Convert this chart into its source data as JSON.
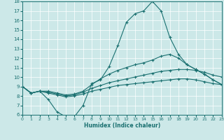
{
  "xlabel": "Humidex (Indice chaleur)",
  "bg_color": "#cce8e8",
  "line_color": "#1a7070",
  "grid_color": "#b0d8d8",
  "xlim": [
    0,
    23
  ],
  "ylim": [
    6,
    18
  ],
  "yticks": [
    6,
    7,
    8,
    9,
    10,
    11,
    12,
    13,
    14,
    15,
    16,
    17,
    18
  ],
  "xticks": [
    0,
    1,
    2,
    3,
    4,
    5,
    6,
    7,
    8,
    9,
    10,
    11,
    12,
    13,
    14,
    15,
    16,
    17,
    18,
    19,
    20,
    21,
    22,
    23
  ],
  "line1_x": [
    0,
    1,
    2,
    3,
    4,
    5,
    6,
    7,
    8,
    9,
    10,
    11,
    12,
    13,
    14,
    15,
    16,
    17,
    18,
    19,
    20,
    21,
    22,
    23
  ],
  "line1_y": [
    9.0,
    8.3,
    8.5,
    7.6,
    6.3,
    5.8,
    5.8,
    7.0,
    9.3,
    9.7,
    11.1,
    13.3,
    15.8,
    16.7,
    17.0,
    18.0,
    17.0,
    14.2,
    12.4,
    11.3,
    10.8,
    10.3,
    9.7,
    9.2
  ],
  "line2_x": [
    0,
    1,
    2,
    3,
    4,
    5,
    6,
    7,
    8,
    9,
    10,
    11,
    12,
    13,
    14,
    15,
    16,
    17,
    18,
    19,
    20,
    21,
    22,
    23
  ],
  "line2_y": [
    9.0,
    8.3,
    8.5,
    8.5,
    8.3,
    8.1,
    8.2,
    8.5,
    9.2,
    9.8,
    10.3,
    10.7,
    11.0,
    11.3,
    11.5,
    11.8,
    12.2,
    12.4,
    12.0,
    11.3,
    10.8,
    10.3,
    9.7,
    9.2
  ],
  "line3_x": [
    0,
    1,
    2,
    3,
    4,
    5,
    6,
    7,
    8,
    9,
    10,
    11,
    12,
    13,
    14,
    15,
    16,
    17,
    18,
    19,
    20,
    21,
    22,
    23
  ],
  "line3_y": [
    9.0,
    8.3,
    8.5,
    8.4,
    8.2,
    8.0,
    8.1,
    8.4,
    8.8,
    9.1,
    9.4,
    9.6,
    9.8,
    10.0,
    10.2,
    10.4,
    10.6,
    10.7,
    10.8,
    10.8,
    10.7,
    10.5,
    10.2,
    10.0
  ],
  "line4_x": [
    0,
    1,
    2,
    3,
    4,
    5,
    6,
    7,
    8,
    9,
    10,
    11,
    12,
    13,
    14,
    15,
    16,
    17,
    18,
    19,
    20,
    21,
    22,
    23
  ],
  "line4_y": [
    9.0,
    8.3,
    8.5,
    8.3,
    8.1,
    7.9,
    8.0,
    8.2,
    8.5,
    8.7,
    8.9,
    9.1,
    9.2,
    9.3,
    9.4,
    9.5,
    9.6,
    9.7,
    9.8,
    9.8,
    9.7,
    9.5,
    9.3,
    9.2
  ]
}
